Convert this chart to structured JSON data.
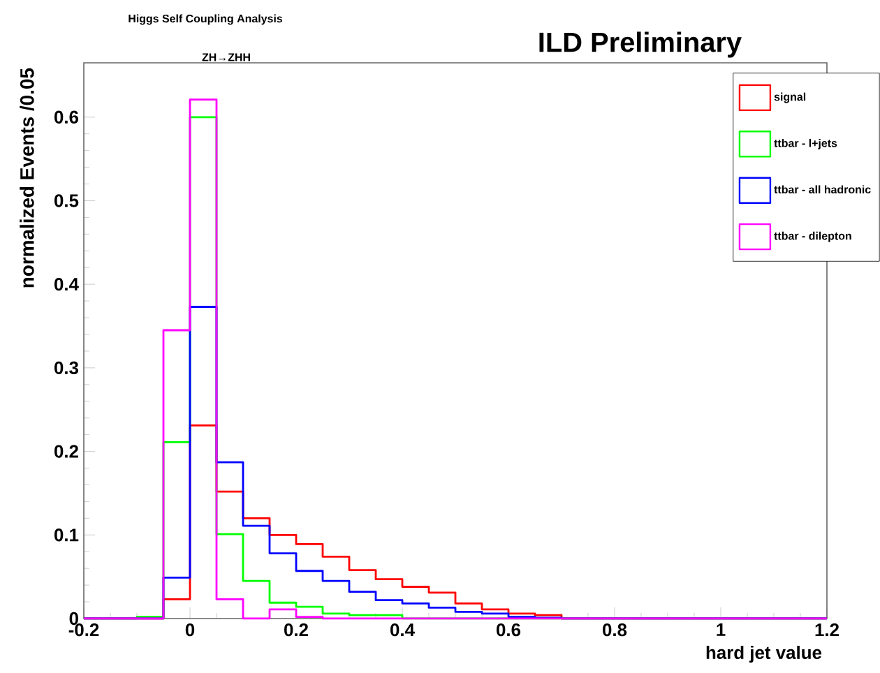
{
  "chart_data": {
    "type": "histogram",
    "title": "ILD Preliminary",
    "annotations": [
      "Higgs Self Coupling Analysis",
      "ZH→ZHH"
    ],
    "xlabel": "hard jet value",
    "ylabel": "normalized Events /0.05",
    "bins": [
      -0.2,
      -0.15,
      -0.1,
      -0.05,
      0,
      0.05,
      0.1,
      0.15,
      0.2,
      0.25,
      0.3,
      0.35,
      0.4,
      0.45,
      0.5,
      0.55,
      0.6,
      0.65,
      0.7,
      0.75,
      0.8,
      0.85,
      0.9,
      0.95,
      1.0,
      1.05,
      1.1,
      1.15,
      1.2
    ],
    "series": [
      {
        "name": "signal",
        "color": "#ff0000",
        "values": [
          0,
          0,
          0,
          0.023,
          0.231,
          0.152,
          0.12,
          0.1,
          0.089,
          0.074,
          0.058,
          0.047,
          0.038,
          0.031,
          0.018,
          0.011,
          0.006,
          0.004,
          0,
          0,
          0,
          0,
          0,
          0,
          0,
          0,
          0,
          0
        ]
      },
      {
        "name": "ttbar - l+jets",
        "color": "#00ff00",
        "values": [
          0,
          0,
          0.002,
          0.211,
          0.6,
          0.101,
          0.045,
          0.019,
          0.014,
          0.006,
          0.004,
          0.004,
          0,
          0,
          0,
          0,
          0,
          0,
          0,
          0,
          0,
          0,
          0,
          0,
          0,
          0,
          0,
          0
        ]
      },
      {
        "name": "ttbar - all hadronic",
        "color": "#0000ff",
        "values": [
          0,
          0,
          0,
          0.049,
          0.373,
          0.187,
          0.111,
          0.078,
          0.057,
          0.045,
          0.032,
          0.022,
          0.018,
          0.013,
          0.008,
          0.006,
          0.002,
          0.001,
          0,
          0,
          0,
          0,
          0,
          0,
          0,
          0,
          0,
          0
        ]
      },
      {
        "name": "ttbar - dilepton",
        "color": "#ff00ff",
        "values": [
          0,
          0,
          0,
          0.345,
          0.621,
          0.023,
          0,
          0.011,
          0.002,
          0,
          0,
          0,
          0,
          0,
          0,
          0,
          0,
          0,
          0,
          0,
          0,
          0,
          0,
          0,
          0,
          0,
          0,
          0
        ]
      }
    ],
    "xlim": [
      -0.2,
      1.2
    ],
    "ylim": [
      0,
      0.665
    ],
    "xticks": [
      -0.2,
      0,
      0.2,
      0.4,
      0.6,
      0.8,
      1,
      1.2
    ],
    "yticks": [
      0,
      0.1,
      0.2,
      0.3,
      0.4,
      0.5,
      0.6
    ],
    "legend": "top right"
  }
}
